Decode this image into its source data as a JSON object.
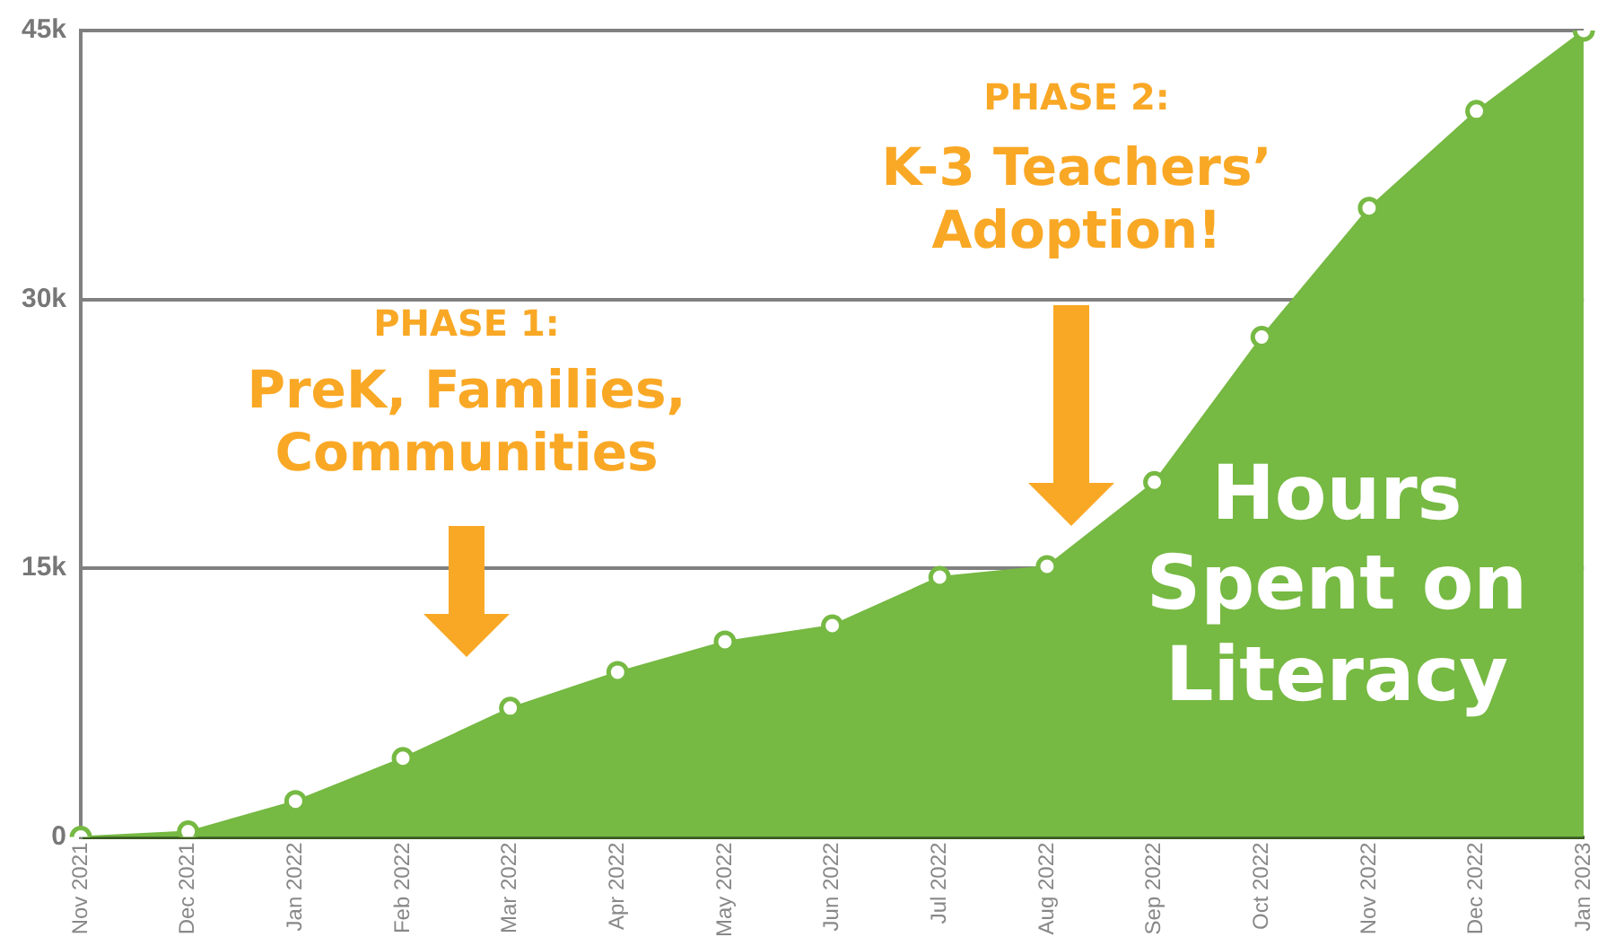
{
  "chart_data": {
    "type": "area",
    "categories": [
      "Nov 2021",
      "Dec 2021",
      "Jan 2022",
      "Feb 2022",
      "Mar 2022",
      "Apr 2022",
      "May 2022",
      "Jun 2022",
      "Jul 2022",
      "Aug 2022",
      "Sep 2022",
      "Oct 2022",
      "Nov 2022",
      "Dec 2022",
      "Jan 2023"
    ],
    "series": [
      {
        "color": "#76b943",
        "values": [
          0,
          300,
          2000,
          4400,
          7200,
          9200,
          10900,
          11800,
          14500,
          15100,
          19800,
          27900,
          35100,
          40500,
          45000
        ]
      }
    ],
    "ylim": [
      0,
      45000
    ],
    "yticks": [
      {
        "value": 0,
        "label": "0"
      },
      {
        "value": 15000,
        "label": "15k"
      },
      {
        "value": 30000,
        "label": "30k"
      },
      {
        "value": 45000,
        "label": "45k"
      }
    ],
    "grid": "y",
    "legend": false,
    "marker": "circle",
    "annotations": [
      "PHASE 1:",
      "PreK, Families, Communities",
      "PHASE 2:",
      "K-3 Teachers’ Adoption!",
      "Hours Spent on Literacy"
    ]
  }
}
